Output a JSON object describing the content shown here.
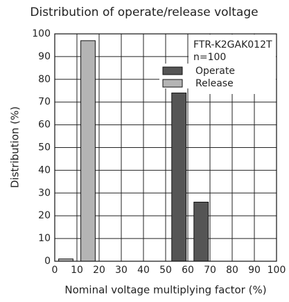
{
  "chart_data": {
    "type": "bar",
    "title": "Distribution of operate/release voltage",
    "xlabel": "Nominal voltage multiplying factor (%)",
    "ylabel": "Distribution (%)",
    "annotations": [
      "FTR-K2GAK012T",
      "n=100"
    ],
    "series": [
      {
        "name": "Operate",
        "color": "#555555",
        "x": [
          56,
          66
        ],
        "values": [
          74,
          26
        ]
      },
      {
        "name": "Release",
        "color": "#b4b4b4",
        "x": [
          5,
          15
        ],
        "values": [
          1,
          97
        ]
      }
    ],
    "xlim": [
      0,
      100
    ],
    "xticks": [
      0,
      10,
      20,
      30,
      40,
      50,
      60,
      70,
      80,
      90,
      100
    ],
    "ylim": [
      0,
      100
    ],
    "yticks": [
      0,
      10,
      20,
      30,
      40,
      50,
      60,
      70,
      80,
      90,
      100
    ],
    "grid": true,
    "legend": "upper right"
  }
}
